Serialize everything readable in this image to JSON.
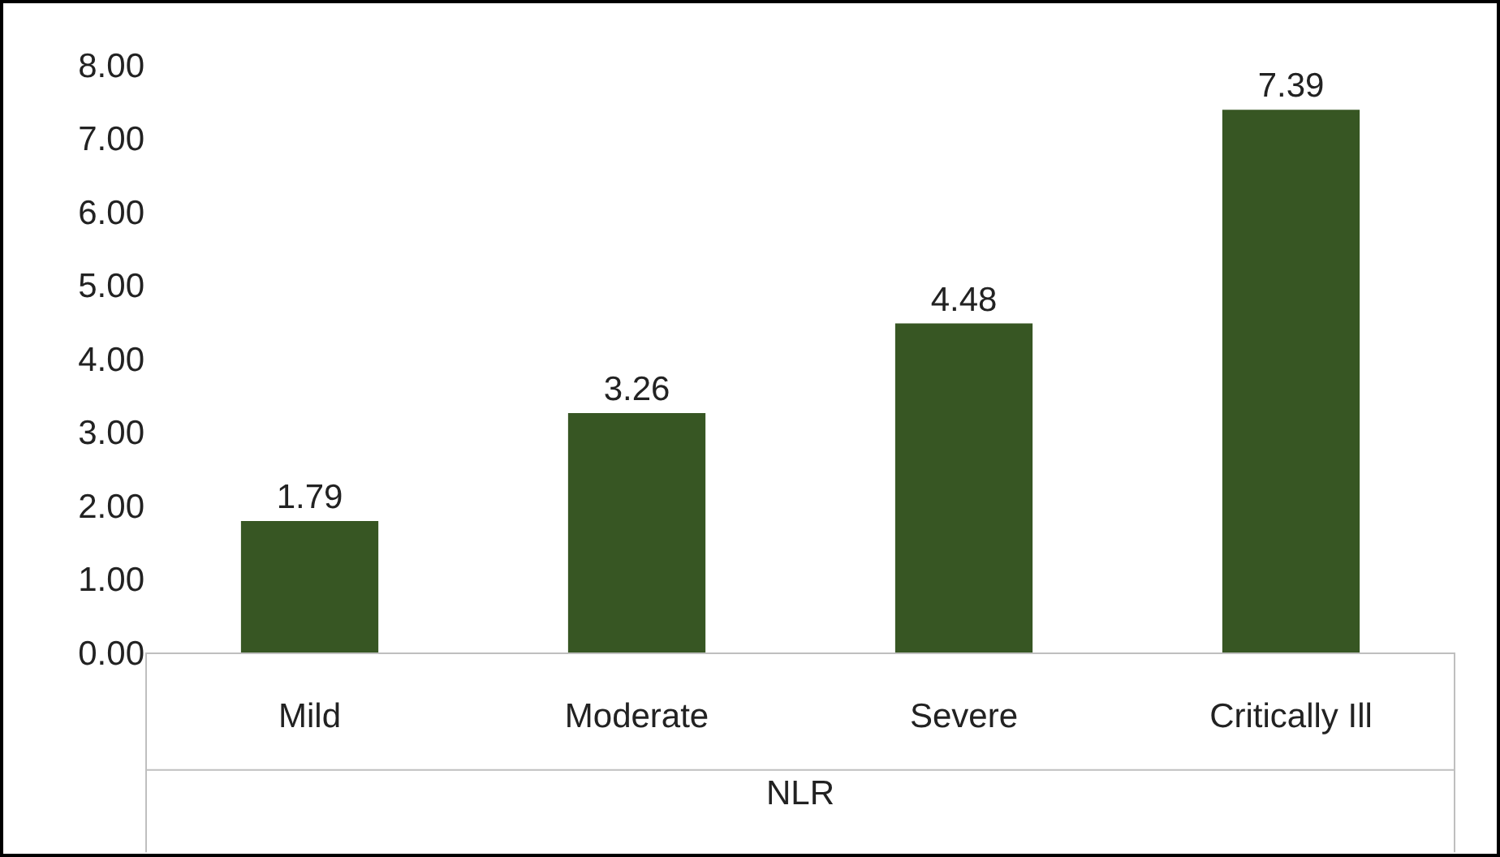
{
  "chart_data": {
    "type": "bar",
    "xlabel": "NLR",
    "categories": [
      "Mild",
      "Moderate",
      "Severe",
      "Critically Ill"
    ],
    "values": [
      1.79,
      3.26,
      4.48,
      7.39
    ],
    "color": "#375623",
    "data_labels": true,
    "ylim": [
      0,
      8
    ],
    "yticks": [
      {
        "value": 0,
        "label": "0.00"
      },
      {
        "value": 1,
        "label": "1.00"
      },
      {
        "value": 2,
        "label": "2.00"
      },
      {
        "value": 3,
        "label": "3.00"
      },
      {
        "value": 4,
        "label": "4.00"
      },
      {
        "value": 5,
        "label": "5.00"
      },
      {
        "value": 6,
        "label": "6.00"
      },
      {
        "value": 7,
        "label": "7.00"
      },
      {
        "value": 8,
        "label": "8.00"
      }
    ]
  }
}
